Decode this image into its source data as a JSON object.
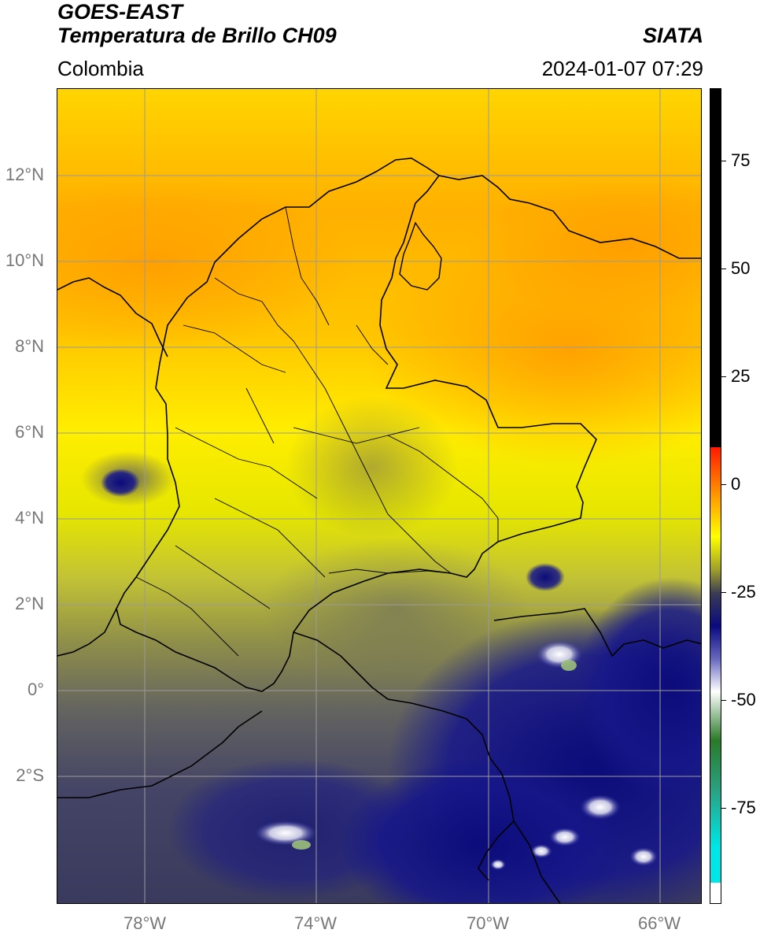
{
  "header": {
    "title_line1": "GOES-EAST",
    "title_line2": "Temperatura de Brillo CH09",
    "brand": "SIATA",
    "region": "Colombia",
    "timestamp": "2024-01-07 07:29"
  },
  "map": {
    "lat_labels": [
      "12°N",
      "10°N",
      "8°N",
      "6°N",
      "4°N",
      "2°N",
      "0°",
      "2°S"
    ],
    "lon_labels": [
      "78°W",
      "74°W",
      "70°W",
      "66°W"
    ],
    "gridlines": true,
    "gridline_color": "#9a9a9a",
    "boundary_color": "#000000"
  },
  "colorbar": {
    "tick_labels": [
      "75",
      "50",
      "25",
      "0",
      "-25",
      "-50",
      "-75"
    ],
    "tick_values": [
      75,
      50,
      25,
      0,
      -25,
      -50,
      -75
    ],
    "range": [
      -97,
      92
    ],
    "colors": {
      "warm_top": "#000000",
      "red": "#ff1a00",
      "orange": "#ff9a00",
      "yellow": "#ffff00",
      "olive": "#a0a02a",
      "dark_gray": "#3a3a55",
      "navy": "#0a0a80",
      "light": "#ffffff",
      "green": "#2a7a2a",
      "cyan": "#00e5e5"
    }
  }
}
